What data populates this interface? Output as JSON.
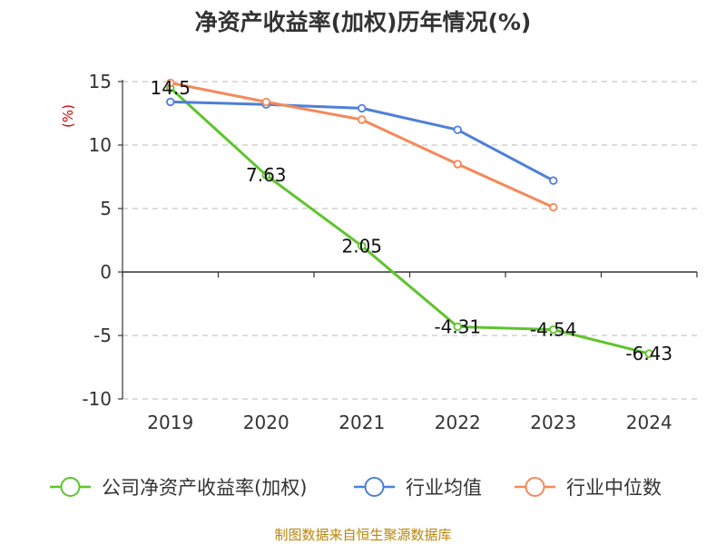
{
  "chart_data": {
    "type": "line",
    "title": "净资产收益率(加权)历年情况(%)",
    "ylabel": "(%)",
    "xlabel": "",
    "categories": [
      "2019",
      "2020",
      "2021",
      "2022",
      "2023",
      "2024"
    ],
    "ylim": [
      -10,
      15
    ],
    "yticks": [
      15,
      10,
      5,
      0,
      -5,
      -10
    ],
    "grid": true,
    "legend_position": "bottom",
    "series": [
      {
        "name": "公司净资产收益率(加权)",
        "color": "#5ec42d",
        "values": [
          14.5,
          7.63,
          2.05,
          -4.31,
          -4.54,
          -6.43
        ],
        "labels": [
          "14.5",
          "7.63",
          "2.05",
          "-4.31",
          "-4.54",
          "-6.43"
        ]
      },
      {
        "name": "行业均值",
        "color": "#4e7fd8",
        "values": [
          13.4,
          13.2,
          12.9,
          11.2,
          7.2,
          null
        ]
      },
      {
        "name": "行业中位数",
        "color": "#f5895a",
        "values": [
          14.9,
          13.4,
          12.0,
          8.5,
          5.1,
          null
        ]
      }
    ],
    "source": "制图数据来自恒生聚源数据库"
  }
}
